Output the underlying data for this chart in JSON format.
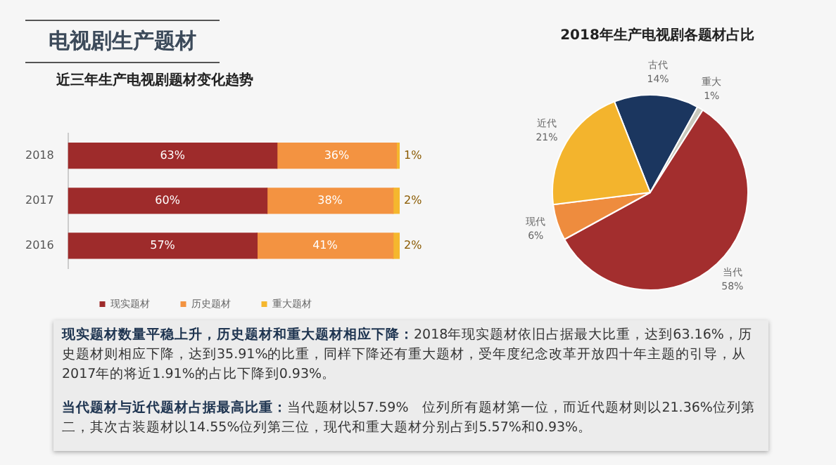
{
  "chart_data": [
    {
      "type": "bar",
      "orientation": "horizontal",
      "stacked": true,
      "title": "电视剧生产题材",
      "subtitle": "近三年生产电视剧题材变化趋势",
      "categories": [
        "2018",
        "2017",
        "2016"
      ],
      "xlim": [
        0,
        100
      ],
      "tick_labels": "y",
      "grid": false,
      "legend": "bottom",
      "series": [
        {
          "name": "现实题材",
          "color": "#9e2b2b",
          "values": [
            63,
            60,
            57
          ],
          "value_labels": [
            "63%",
            "60%",
            "57%"
          ]
        },
        {
          "name": "历史题材",
          "color": "#f39341",
          "values": [
            36,
            38,
            41
          ],
          "value_labels": [
            "36%",
            "38%",
            "41%"
          ]
        },
        {
          "name": "重大题材",
          "color": "#f5b72e",
          "values": [
            1,
            2,
            2
          ],
          "value_labels": [
            "1%",
            "2%",
            "2%"
          ]
        }
      ]
    },
    {
      "type": "pie",
      "title": "2018年生产电视剧各题材占比",
      "categories": [
        "古代",
        "重大",
        "当代",
        "现代",
        "近代"
      ],
      "values": [
        14,
        1,
        58,
        6,
        21
      ],
      "value_labels": [
        "14%",
        "1%",
        "58%",
        "6%",
        "21%"
      ],
      "colors": [
        "#1b365f",
        "#c9c9bd",
        "#a32e2e",
        "#ee8c3e",
        "#f3b42d"
      ],
      "legend": false
    },
    {
      "type": "other",
      "annotations": [
        "现实题材数量平稳上升，历史题材和重大题材相应下降：",
        "2018年现实题材依旧占据最大比重，达到63.16%，历史题材则相应下降，达到35.91%的比重，同样下降还有重大题材，受年度纪念改革开放四十年主题的引导，从2017年的将近1.91%的占比下降到0.93%。",
        "当代题材与近代题材占据最高比重：",
        "当代题材以57.59%　位列所有题材第一位，而近代题材则以21.36%位列第二，其次古装题材以14.55%位列第三位，现代和重大题材分别占到5.57%和0.93%。"
      ]
    }
  ]
}
